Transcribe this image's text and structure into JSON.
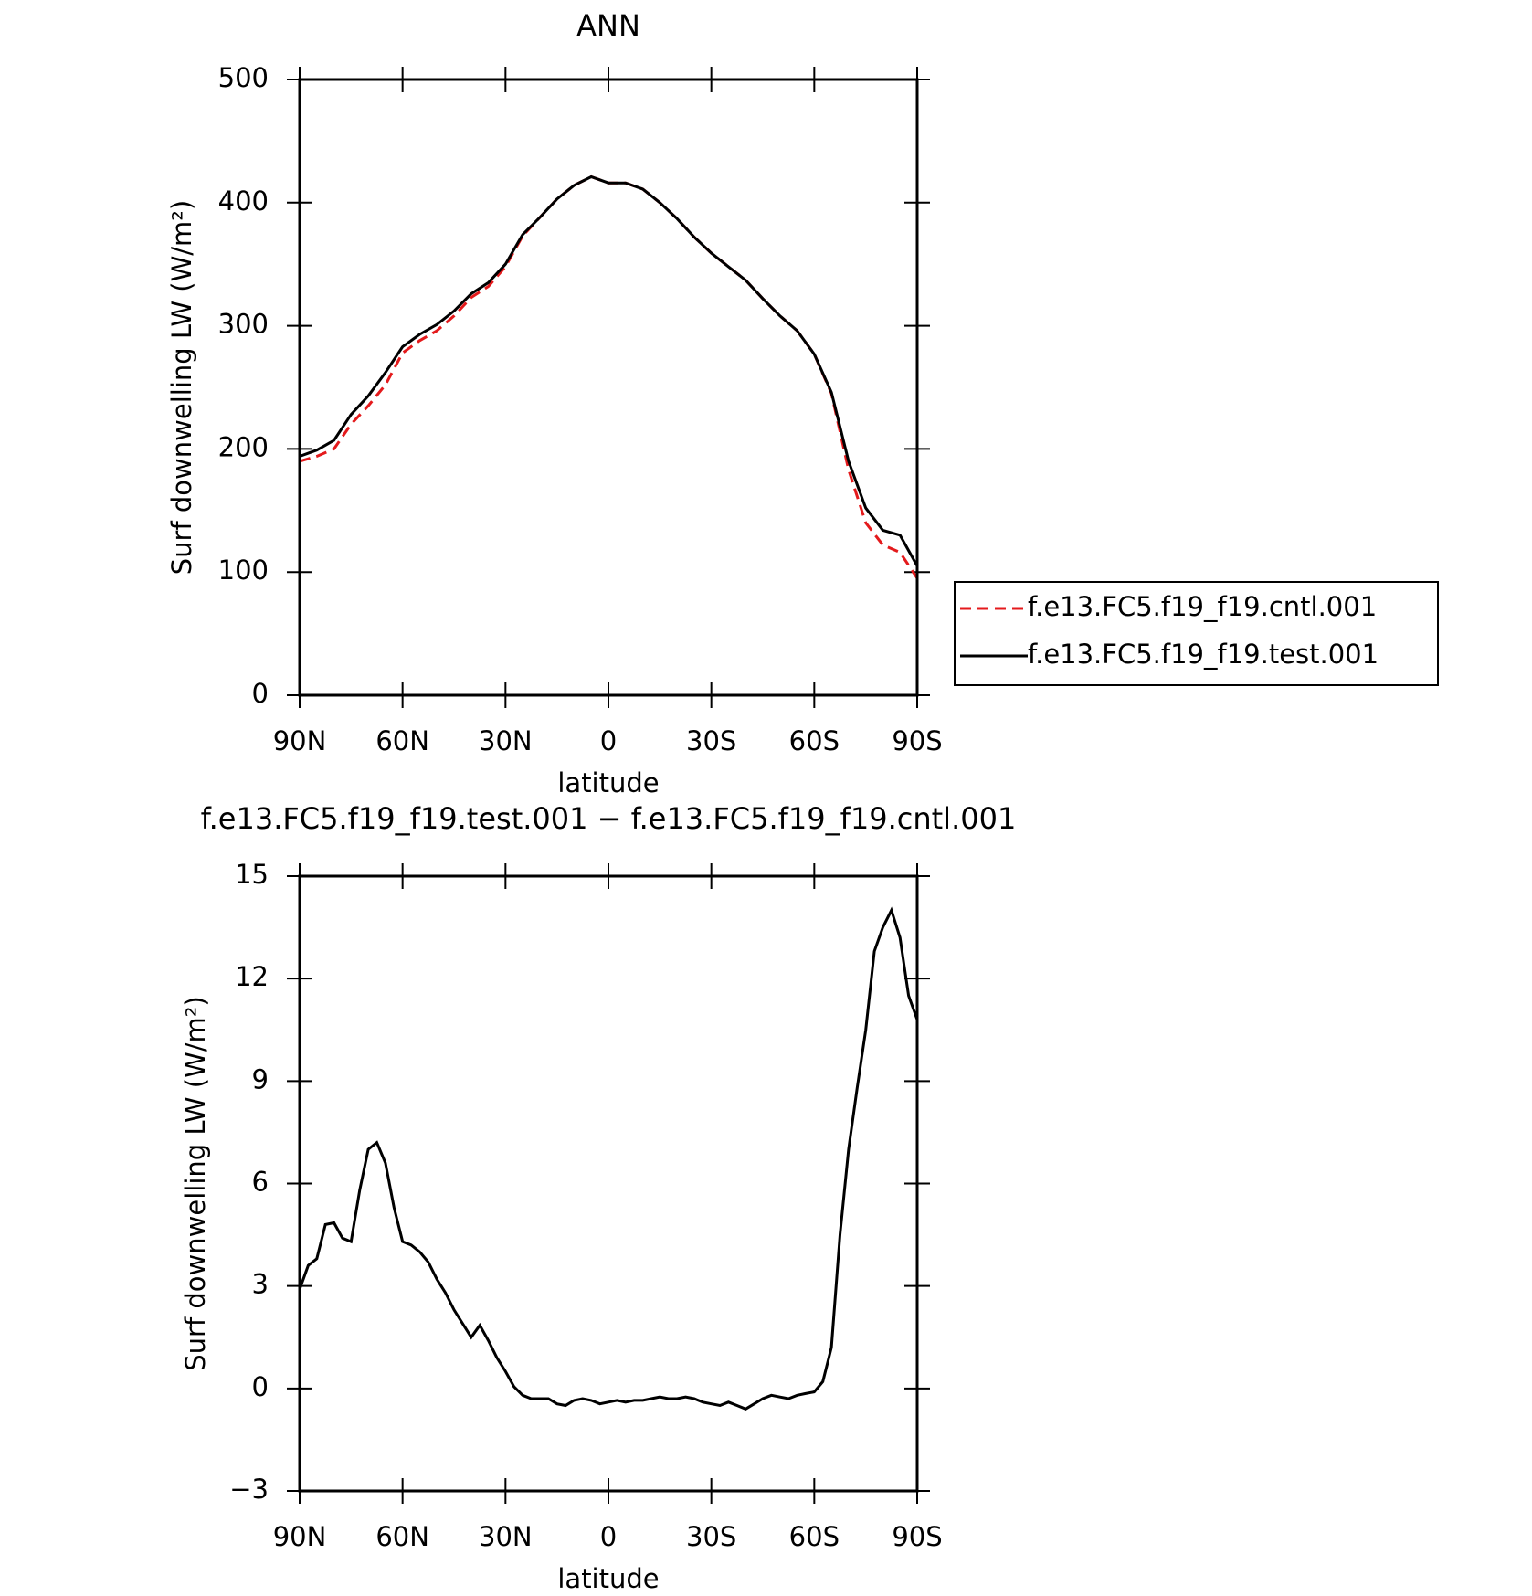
{
  "chart_data": [
    {
      "type": "line",
      "title": "ANN",
      "xlabel": "latitude",
      "ylabel": "Surf downwelling LW (W/m²)",
      "x": [
        90,
        85,
        80,
        75,
        70,
        65,
        60,
        55,
        50,
        45,
        40,
        35,
        30,
        25,
        20,
        15,
        10,
        5,
        0,
        -5,
        -10,
        -15,
        -20,
        -25,
        -30,
        -35,
        -40,
        -45,
        -50,
        -55,
        -60,
        -65,
        -70,
        -75,
        -80,
        -85,
        -90
      ],
      "series": [
        {
          "name": "f.e13.FC5.f19_f19.cntl.001",
          "color": "#e41a1c",
          "dashed": true,
          "values": [
            190,
            194,
            200,
            220,
            235,
            252,
            278,
            288,
            296,
            308,
            323,
            332,
            348,
            373,
            388,
            403,
            414,
            421,
            416,
            416,
            411,
            400,
            387,
            372,
            359,
            348,
            337,
            322,
            308,
            296,
            277,
            245,
            183,
            140,
            122,
            116,
            95
          ]
        },
        {
          "name": "f.e13.FC5.f19_f19.test.001",
          "color": "#000000",
          "dashed": false,
          "values": [
            194,
            199,
            207,
            228,
            243,
            262,
            283,
            293,
            301,
            312,
            326,
            335,
            350,
            374,
            388,
            403,
            414,
            421,
            416,
            416,
            411,
            400,
            387,
            372,
            359,
            348,
            337,
            322,
            308,
            296,
            277,
            246,
            190,
            152,
            134,
            130,
            105
          ]
        }
      ],
      "xlim": [
        90,
        -90
      ],
      "ylim": [
        0,
        500
      ],
      "xticks": [
        {
          "value": 90,
          "label": "90N"
        },
        {
          "value": 60,
          "label": "60N"
        },
        {
          "value": 30,
          "label": "30N"
        },
        0,
        {
          "value": -30,
          "label": "30S"
        },
        {
          "value": -60,
          "label": "60S"
        },
        {
          "value": -90,
          "label": "90S"
        }
      ],
      "yticks": [
        0,
        100,
        200,
        300,
        400,
        500
      ]
    },
    {
      "type": "line",
      "title": "f.e13.FC5.f19_f19.test.001 − f.e13.FC5.f19_f19.cntl.001",
      "xlabel": "latitude",
      "ylabel": "Surf downwelling LW (W/m²)",
      "x": [
        90,
        87.5,
        85,
        82.5,
        80,
        77.5,
        75,
        72.5,
        70,
        67.5,
        65,
        62.5,
        60,
        57.5,
        55,
        52.5,
        50,
        47.5,
        45,
        42.5,
        40,
        37.5,
        35,
        32.5,
        30,
        27.5,
        25,
        22.5,
        20,
        17.5,
        15,
        12.5,
        10,
        7.5,
        5,
        2.5,
        0,
        -2.5,
        -5,
        -7.5,
        -10,
        -12.5,
        -15,
        -17.5,
        -20,
        -22.5,
        -25,
        -27.5,
        -30,
        -32.5,
        -35,
        -37.5,
        -40,
        -42.5,
        -45,
        -47.5,
        -50,
        -52.5,
        -55,
        -57.5,
        -60,
        -62.5,
        -65,
        -67.5,
        -70,
        -72.5,
        -75,
        -77.5,
        -80,
        -82.5,
        -85,
        -87.5,
        -90
      ],
      "series": [
        {
          "color": "#000000",
          "dashed": false,
          "values": [
            2.9,
            3.6,
            3.8,
            4.8,
            4.85,
            4.4,
            4.3,
            5.8,
            7.0,
            7.2,
            6.6,
            5.3,
            4.3,
            4.2,
            4.0,
            3.7,
            3.2,
            2.8,
            2.3,
            1.9,
            1.5,
            1.85,
            1.4,
            0.9,
            0.5,
            0.05,
            -0.2,
            -0.3,
            -0.3,
            -0.3,
            -0.45,
            -0.5,
            -0.35,
            -0.3,
            -0.35,
            -0.45,
            -0.4,
            -0.35,
            -0.4,
            -0.35,
            -0.35,
            -0.3,
            -0.25,
            -0.3,
            -0.3,
            -0.25,
            -0.3,
            -0.4,
            -0.45,
            -0.5,
            -0.4,
            -0.5,
            -0.6,
            -0.45,
            -0.3,
            -0.2,
            -0.25,
            -0.3,
            -0.2,
            -0.15,
            -0.1,
            0.2,
            1.2,
            4.5,
            7.0,
            8.8,
            10.5,
            12.8,
            13.5,
            14.0,
            13.2,
            11.5,
            10.8
          ]
        }
      ],
      "xlim": [
        90,
        -90
      ],
      "ylim": [
        -3,
        15
      ],
      "xticks": [
        {
          "value": 90,
          "label": "90N"
        },
        {
          "value": 60,
          "label": "60N"
        },
        {
          "value": 30,
          "label": "30N"
        },
        0,
        {
          "value": -30,
          "label": "30S"
        },
        {
          "value": -60,
          "label": "60S"
        },
        {
          "value": -90,
          "label": "90S"
        }
      ],
      "yticks": [
        {
          "value": -3,
          "label": "−3"
        },
        0,
        3,
        6,
        9,
        12,
        15
      ]
    }
  ]
}
